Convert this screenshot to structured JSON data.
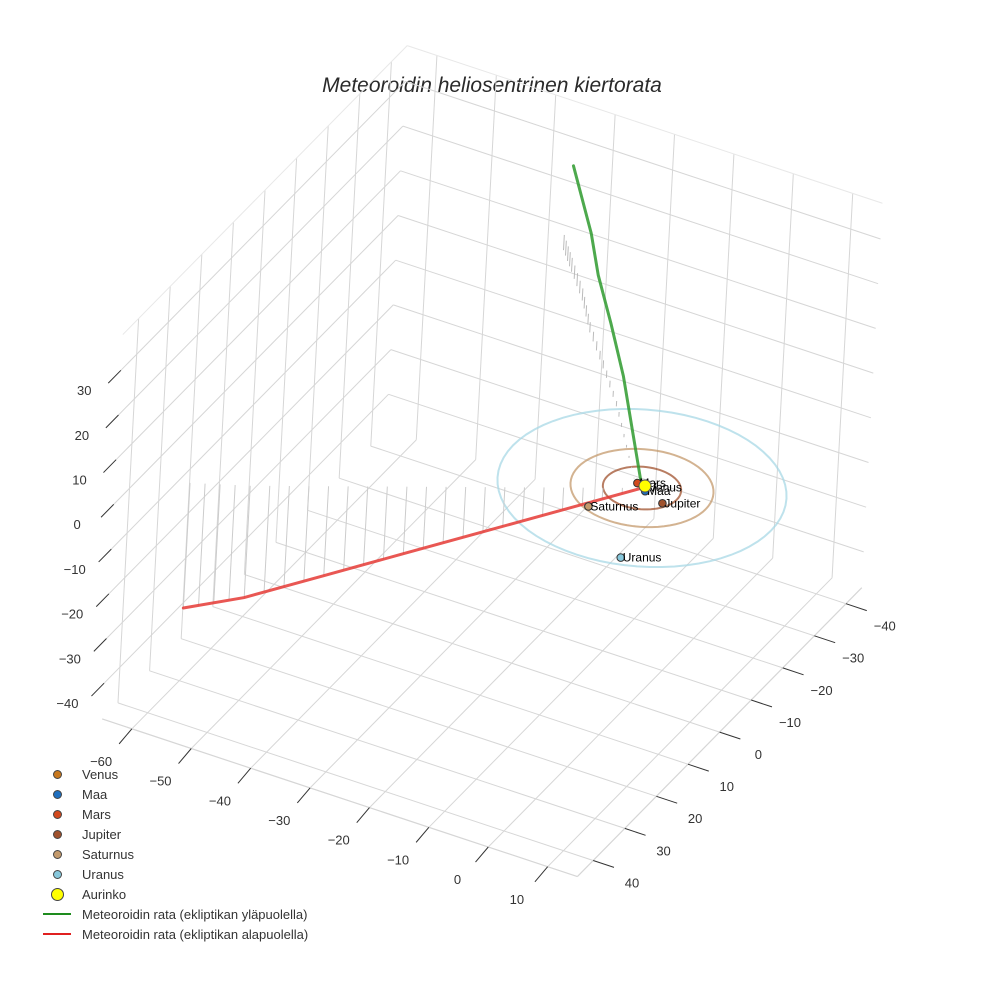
{
  "chart_data": {
    "type": "scatter3d",
    "title": "Meteoroidin heliosentrinen kiertorata",
    "xlabel": "",
    "ylabel": "",
    "zlabel": "",
    "axes": {
      "x": {
        "ticks": [
          -60,
          -50,
          -40,
          -30,
          -20,
          -10,
          0,
          10
        ],
        "range": [
          -65,
          15
        ]
      },
      "y": {
        "ticks": [
          -40,
          -30,
          -20,
          -10,
          0,
          10,
          20,
          30,
          40
        ],
        "range": [
          -45,
          45
        ]
      },
      "z": {
        "ticks": [
          -40,
          -30,
          -20,
          -10,
          0,
          10,
          20,
          30
        ],
        "range": [
          -48,
          38
        ]
      }
    },
    "grid": true,
    "legend_position": "bottom-left",
    "planets": [
      {
        "name": "Venus",
        "color": "#c8781e",
        "x": 0.5,
        "y": -0.5,
        "z": 0,
        "orbit_radius": 0.72,
        "orbit_color": "#c8781e"
      },
      {
        "name": "Maa",
        "color": "#1f6fbf",
        "x": 0.8,
        "y": 0.5,
        "z": 0,
        "orbit_radius": 1.0,
        "orbit_color": "#1f6fbf"
      },
      {
        "name": "Mars",
        "color": "#d24a1e",
        "x": -1.2,
        "y": -0.8,
        "z": 0,
        "orbit_radius": 1.52,
        "orbit_color": "#d24a1e"
      },
      {
        "name": "Jupiter",
        "color": "#a0522d",
        "x": 4.5,
        "y": 2.0,
        "z": 0,
        "orbit_radius": 5.2,
        "orbit_color": "#a0522d"
      },
      {
        "name": "Saturnus",
        "color": "#c49a6c",
        "x": -4.5,
        "y": 8.5,
        "z": 0,
        "orbit_radius": 9.5,
        "orbit_color": "#c49a6c"
      },
      {
        "name": "Uranus",
        "color": "#87c8dc",
        "x": 6.0,
        "y": 18.0,
        "z": 0,
        "orbit_radius": 19.2,
        "orbit_color": "#a8d8e6"
      }
    ],
    "sun": {
      "name": "Aurinko",
      "color": "#ffff00",
      "x": 0,
      "y": 0,
      "z": 0
    },
    "series": [
      {
        "name": "Meteoroidin rata (ekliptikan yläpuolella)",
        "color": "#2e9a2e",
        "points": [
          [
            0,
            0,
            0
          ],
          [
            -5,
            -6,
            6
          ],
          [
            -10,
            -12,
            12
          ],
          [
            -15,
            -17,
            18
          ],
          [
            -20,
            -22,
            23
          ],
          [
            -24,
            -27,
            27
          ],
          [
            -28,
            -31,
            31
          ],
          [
            -31,
            -34,
            34
          ]
        ]
      },
      {
        "name": "Meteoroidin rata (ekliptikan alapuolella)",
        "color": "#e53935",
        "points": [
          [
            0,
            0,
            0
          ],
          [
            -10,
            6,
            -5
          ],
          [
            -20,
            12,
            -10
          ],
          [
            -30,
            18,
            -15
          ],
          [
            -40,
            24,
            -20
          ],
          [
            -50,
            30,
            -25
          ],
          [
            -58,
            34,
            -28
          ]
        ]
      }
    ]
  },
  "legend": {
    "items": [
      {
        "label": "Venus",
        "kind": "dot",
        "color": "#c8781e"
      },
      {
        "label": "Maa",
        "kind": "dot",
        "color": "#1f6fbf"
      },
      {
        "label": "Mars",
        "kind": "dot",
        "color": "#d24a1e"
      },
      {
        "label": "Jupiter",
        "kind": "dot",
        "color": "#a0522d"
      },
      {
        "label": "Saturnus",
        "kind": "dot",
        "color": "#c49a6c"
      },
      {
        "label": "Uranus",
        "kind": "dot",
        "color": "#87c8dc"
      },
      {
        "label": "Aurinko",
        "kind": "bigdot",
        "color": "#ffff00"
      },
      {
        "label": "Meteoroidin rata (ekliptikan yläpuolella)",
        "kind": "line",
        "color": "#1e8c1e"
      },
      {
        "label": "Meteoroidin rata (ekliptikan alapuolella)",
        "kind": "line",
        "color": "#e02020"
      }
    ]
  }
}
